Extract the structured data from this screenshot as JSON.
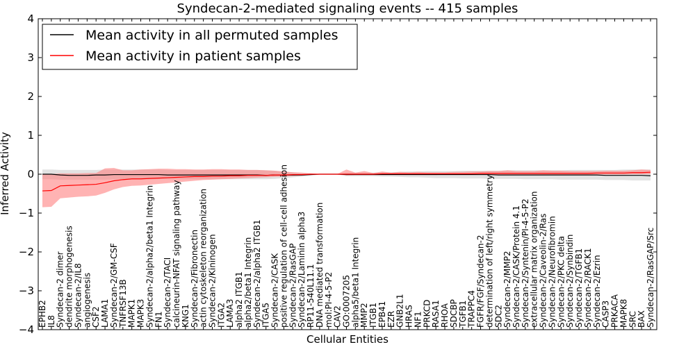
{
  "chart_data": {
    "type": "line",
    "title": "Syndecan-2-mediated signaling events -- 415 samples",
    "xlabel": "Cellular Entities",
    "ylabel": "Inferred Activity",
    "ylim": [
      -4,
      4
    ],
    "yticks": [
      "−4",
      "−3",
      "−2",
      "−1",
      "0",
      "1",
      "2",
      "3",
      "4"
    ],
    "legend_position": "top-left",
    "colors": {
      "permuted": "#000000",
      "patient": "#ff0000",
      "permuted_band": "#bfbfbf",
      "patient_band": "#ff8080"
    },
    "categories": [
      "EPHB2",
      "IL8",
      "Syndecan-2 dimer",
      "dendrite morphogenesis",
      "Syndecan-2/IL8",
      "angiogenesis",
      "CSF2",
      "LAMA1",
      "Syndecan-2/GM-CSF",
      "TNFRSF13B",
      "MAPK1",
      "MAPK3",
      "Syndecan-2/alpha2/beta1 Integrin",
      "FN1",
      "Syndecan-2/TACI",
      "calcineurin-NFAT signaling pathway",
      "KNG1",
      "Syndecan-2/Fibronectin",
      "actin cytoskeleton reorganization",
      "Syndecan-2/Kininogen",
      "ITGA2",
      "LAMA3",
      "alpha2 ITGB1",
      "alpha2/beta1 Integrin",
      "Syndecan-2/alpha2 ITGB1",
      "ITGA5",
      "Syndecan-2/CASK",
      "positive regulation of cell-cell adhesion",
      "Syndecan-2/RasGAP",
      "Syndecan-2/Laminin alpha3",
      "RP11-540L11.1",
      "DNA mediated transformation",
      "mol:PI-4-5-P2",
      "CAV2",
      "GO:0007205",
      "alpha5/beta1 Integrin",
      "MMP2",
      "ITGB1",
      "EPB41",
      "EZR",
      "GNB2L1",
      "HRAS",
      "NF1",
      "PRKCD",
      "RASA1",
      "RHOA",
      "SDCBP",
      "TGFB1",
      "TRAPPC4",
      "FGFR/FGF/Syndecan-2",
      "determination of left/right symmetry",
      "SDC2",
      "Syndecan-2/MMP2",
      "Syndecan-2/CASK/Protein 4.1",
      "Syndecan-2/Syntenin/PI-4-5-P2",
      "extracellular matrix organization",
      "Syndecan-2/Caveolin-2/Ras",
      "Syndecan-2/Neurofibromin",
      "Syndecan-2/PKC delta",
      "Syndecan-2/Synbindin",
      "Syndecan-2/TGFB1",
      "Syndecan-2/RACK1",
      "Syndecan-2/Ezrin",
      "CASP3",
      "PRKACA",
      "MAPK8",
      "SRC",
      "BAX",
      "Syndecan-2/RasGAP/Src"
    ],
    "series": [
      {
        "name": "Mean activity in all permuted samples",
        "values": [
          0,
          0,
          -0.02,
          -0.03,
          -0.03,
          -0.03,
          -0.02,
          -0.02,
          -0.01,
          -0.01,
          -0.01,
          -0.01,
          -0.01,
          -0.01,
          -0.02,
          -0.02,
          -0.02,
          -0.02,
          -0.02,
          -0.02,
          -0.02,
          -0.02,
          -0.02,
          -0.02,
          -0.02,
          -0.03,
          -0.02,
          -0.02,
          -0.02,
          -0.02,
          -0.01,
          0,
          0,
          0,
          -0.01,
          -0.01,
          -0.01,
          -0.01,
          -0.01,
          -0.01,
          -0.01,
          -0.01,
          -0.01,
          -0.01,
          -0.01,
          -0.01,
          -0.01,
          -0.01,
          -0.01,
          -0.01,
          -0.01,
          -0.02,
          -0.02,
          -0.02,
          -0.02,
          -0.02,
          -0.02,
          -0.02,
          -0.02,
          -0.02,
          -0.02,
          -0.02,
          -0.02,
          -0.03,
          -0.03,
          -0.03,
          -0.03,
          -0.03,
          -0.04
        ],
        "lower": [
          -0.13,
          -0.13,
          -0.14,
          -0.14,
          -0.14,
          -0.14,
          -0.14,
          -0.14,
          -0.13,
          -0.13,
          -0.13,
          -0.13,
          -0.13,
          -0.13,
          -0.13,
          -0.13,
          -0.13,
          -0.13,
          -0.13,
          -0.13,
          -0.13,
          -0.13,
          -0.13,
          -0.13,
          -0.13,
          -0.13,
          -0.12,
          -0.1,
          -0.08,
          -0.06,
          -0.04,
          -0.01,
          -0.01,
          -0.01,
          -0.05,
          -0.05,
          -0.05,
          -0.05,
          -0.06,
          -0.06,
          -0.07,
          -0.08,
          -0.08,
          -0.09,
          -0.1,
          -0.1,
          -0.1,
          -0.11,
          -0.11,
          -0.11,
          -0.12,
          -0.12,
          -0.12,
          -0.12,
          -0.13,
          -0.13,
          -0.13,
          -0.13,
          -0.14,
          -0.14,
          -0.14,
          -0.14,
          -0.14,
          -0.15,
          -0.15,
          -0.15,
          -0.16,
          -0.16,
          -0.16
        ],
        "upper": [
          0.12,
          0.12,
          0.11,
          0.11,
          0.11,
          0.11,
          0.11,
          0.12,
          0.12,
          0.12,
          0.12,
          0.12,
          0.12,
          0.12,
          0.11,
          0.11,
          0.11,
          0.11,
          0.11,
          0.11,
          0.11,
          0.11,
          0.11,
          0.11,
          0.11,
          0.1,
          0.09,
          0.07,
          0.05,
          0.03,
          0.02,
          0.01,
          0.01,
          0.01,
          0.04,
          0.04,
          0.04,
          0.04,
          0.05,
          0.05,
          0.06,
          0.07,
          0.07,
          0.08,
          0.08,
          0.08,
          0.08,
          0.09,
          0.09,
          0.09,
          0.09,
          0.09,
          0.1,
          0.1,
          0.1,
          0.1,
          0.1,
          0.1,
          0.1,
          0.11,
          0.11,
          0.11,
          0.11,
          0.11,
          0.11,
          0.12,
          0.12,
          0.12,
          0.12
        ]
      },
      {
        "name": "Mean activity in patient samples",
        "values": [
          -0.43,
          -0.42,
          -0.3,
          -0.29,
          -0.28,
          -0.27,
          -0.26,
          -0.22,
          -0.17,
          -0.14,
          -0.12,
          -0.12,
          -0.11,
          -0.1,
          -0.09,
          -0.08,
          -0.07,
          -0.06,
          -0.06,
          -0.05,
          -0.05,
          -0.04,
          -0.04,
          -0.03,
          -0.03,
          -0.03,
          -0.02,
          -0.02,
          -0.01,
          -0.01,
          0,
          0,
          0,
          0,
          0,
          0,
          0,
          0,
          0.01,
          0.01,
          0.01,
          0.01,
          0.01,
          0.01,
          0.01,
          0.01,
          0.01,
          0.01,
          0.01,
          0.02,
          0.02,
          0.02,
          0.02,
          0.02,
          0.02,
          0.02,
          0.02,
          0.02,
          0.02,
          0.02,
          0.02,
          0.02,
          0.03,
          0.03,
          0.03,
          0.03,
          0.04,
          0.04,
          0.05
        ],
        "lower": [
          -0.85,
          -0.84,
          -0.62,
          -0.6,
          -0.58,
          -0.57,
          -0.55,
          -0.48,
          -0.39,
          -0.33,
          -0.3,
          -0.29,
          -0.27,
          -0.25,
          -0.23,
          -0.21,
          -0.19,
          -0.17,
          -0.15,
          -0.14,
          -0.13,
          -0.12,
          -0.11,
          -0.1,
          -0.09,
          -0.08,
          -0.07,
          -0.06,
          -0.05,
          -0.04,
          -0.02,
          0,
          0,
          0,
          -0.03,
          -0.02,
          -0.02,
          -0.02,
          -0.02,
          -0.02,
          -0.02,
          -0.02,
          -0.02,
          -0.02,
          -0.02,
          -0.01,
          -0.01,
          -0.01,
          -0.01,
          -0.01,
          -0.01,
          -0.01,
          -0.01,
          -0.01,
          -0.01,
          -0.01,
          -0.01,
          -0.01,
          -0.01,
          -0.01,
          -0.01,
          -0.01,
          -0.01,
          -0.01,
          -0.01,
          -0.01,
          0,
          0,
          0
        ],
        "upper": [
          0,
          0,
          0.02,
          0.02,
          0.02,
          0.03,
          0.03,
          0.15,
          0.16,
          0.1,
          0.1,
          0.12,
          0.13,
          0.14,
          0.14,
          0.13,
          0.13,
          0.12,
          0.12,
          0.13,
          0.13,
          0.12,
          0.12,
          0.11,
          0.11,
          0.1,
          0.09,
          0.07,
          0.05,
          0.04,
          0.02,
          0.01,
          0.01,
          0.01,
          0.12,
          0.04,
          0.08,
          0.03,
          0.07,
          0.04,
          0.06,
          0.05,
          0.06,
          0.05,
          0.05,
          0.05,
          0.06,
          0.06,
          0.07,
          0.07,
          0.08,
          0.08,
          0.1,
          0.08,
          0.08,
          0.08,
          0.1,
          0.09,
          0.09,
          0.08,
          0.08,
          0.08,
          0.08,
          0.09,
          0.09,
          0.09,
          0.1,
          0.12,
          0.11
        ]
      }
    ]
  }
}
